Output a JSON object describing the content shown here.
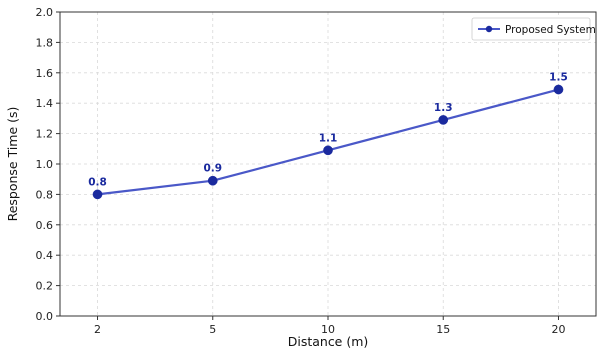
{
  "chart_data": {
    "type": "line",
    "title": "",
    "xlabel": "Distance (m)",
    "ylabel": "Response Time (s)",
    "x_categories": [
      "2",
      "5",
      "10",
      "15",
      "20"
    ],
    "ylim": [
      0.0,
      2.0
    ],
    "y_ticks": [
      "0.0",
      "0.2",
      "0.4",
      "0.6",
      "0.8",
      "1.0",
      "1.2",
      "1.4",
      "1.6",
      "1.8",
      "2.0"
    ],
    "grid": true,
    "legend_position": "top-right",
    "series": [
      {
        "name": "Proposed System",
        "values": [
          0.8,
          0.89,
          1.09,
          1.29,
          1.49
        ],
        "data_labels": [
          "0.8",
          "0.9",
          "1.1",
          "1.3",
          "1.5"
        ],
        "color": "#4a58c8",
        "marker_color": "#1a2a9e",
        "label_color": "#1a2a9e"
      }
    ]
  }
}
